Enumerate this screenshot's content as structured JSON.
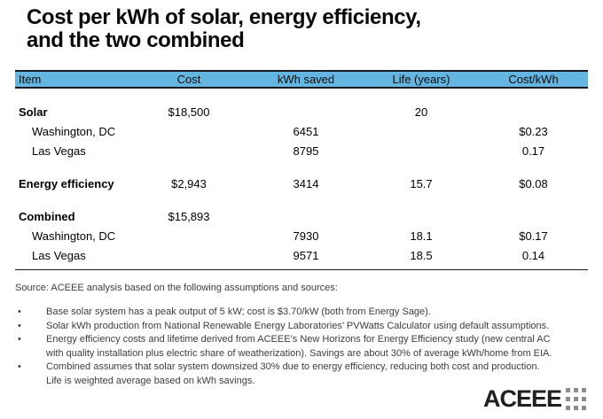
{
  "title": {
    "lines": [
      "Cost per kWh of solar, energy efficiency,",
      "and the two combined"
    ]
  },
  "table": {
    "columns": [
      "Item",
      "Cost",
      "kWh saved",
      "Life (years)",
      "Cost/kWh"
    ],
    "rows": [
      {
        "type": "group",
        "cells": [
          "Solar",
          "$18,500",
          "",
          "20",
          ""
        ]
      },
      {
        "type": "sub",
        "cells": [
          "Washington, DC",
          "",
          "6451",
          "",
          "$0.23"
        ]
      },
      {
        "type": "sub",
        "cells": [
          "Las Vegas",
          "",
          "8795",
          "",
          "0.17"
        ]
      },
      {
        "type": "group",
        "cells": [
          "Energy efficiency",
          "$2,943",
          "3414",
          "15.7",
          "$0.08"
        ]
      },
      {
        "type": "group",
        "cells": [
          "Combined",
          "$15,893",
          "",
          "",
          ""
        ]
      },
      {
        "type": "sub",
        "cells": [
          "Washington, DC",
          "",
          "7930",
          "18.1",
          "$0.17"
        ]
      },
      {
        "type": "sub",
        "cells": [
          "Las Vegas",
          "",
          "9571",
          "18.5",
          "0.14"
        ]
      }
    ]
  },
  "source": {
    "intro": "Source: ACEEE analysis based on the following assumptions and sources:",
    "bullet_marker": "•",
    "bullets": [
      {
        "lines": [
          "Base solar system has a peak output of 5 kW; cost is $3.70/kW (both from Energy Sage)."
        ]
      },
      {
        "lines": [
          "Solar kWh production from National Renewable Energy Laboratories’ PVWatts Calculator using default assumptions."
        ]
      },
      {
        "lines": [
          "Energy efficiency costs and lifetime derived from ACEEE’s New Horizons for Energy Efficiency study (new central AC",
          "with quality installation plus electric share of weatherization). Savings are about 30% of average kWh/home from EIA."
        ]
      },
      {
        "lines": [
          "Combined assumes that solar system downsized 30% due to energy efficiency, reducing both cost and production.",
          "Life is weighted average based on kWh savings."
        ]
      }
    ]
  },
  "logo": {
    "text": "ACEEE",
    "dot_count": 9,
    "dot_color": "#8d8d8d",
    "text_color": "#231f20"
  },
  "colors": {
    "header_bg": "#64b5e0",
    "border_dark": "#17171f",
    "background": "#ffffff"
  }
}
